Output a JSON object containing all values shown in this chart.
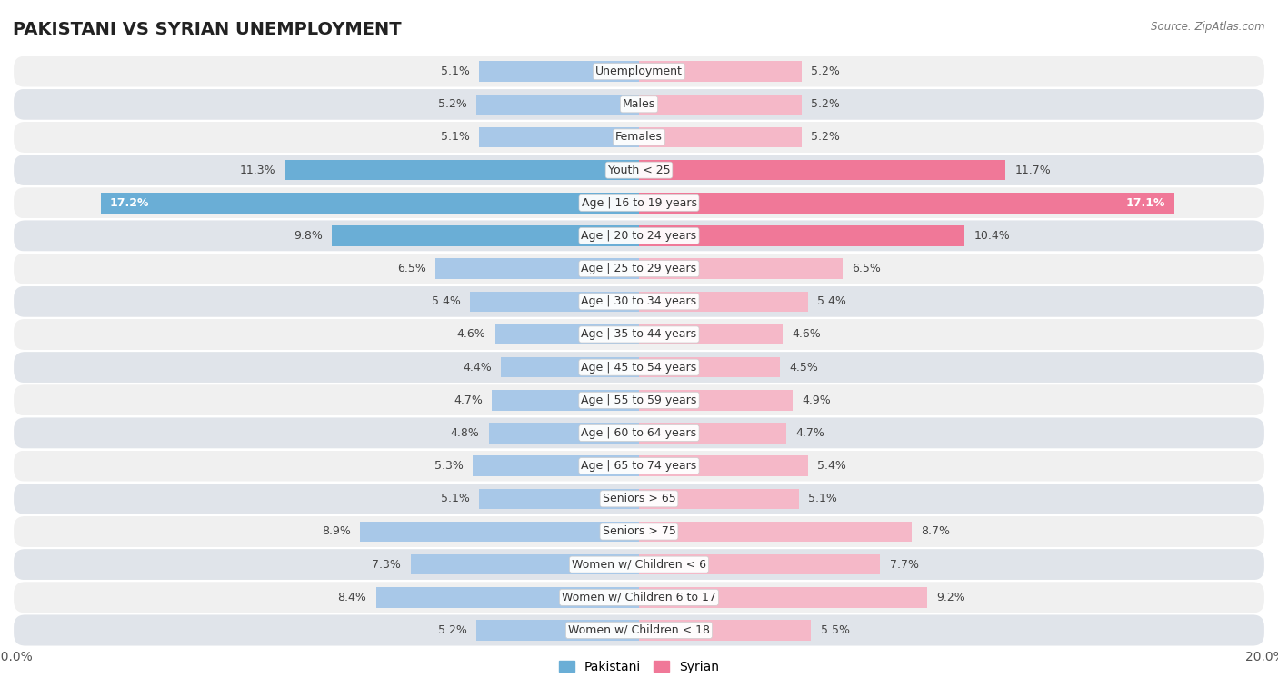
{
  "title": "PAKISTANI VS SYRIAN UNEMPLOYMENT",
  "source": "Source: ZipAtlas.com",
  "categories": [
    "Unemployment",
    "Males",
    "Females",
    "Youth < 25",
    "Age | 16 to 19 years",
    "Age | 20 to 24 years",
    "Age | 25 to 29 years",
    "Age | 30 to 34 years",
    "Age | 35 to 44 years",
    "Age | 45 to 54 years",
    "Age | 55 to 59 years",
    "Age | 60 to 64 years",
    "Age | 65 to 74 years",
    "Seniors > 65",
    "Seniors > 75",
    "Women w/ Children < 6",
    "Women w/ Children 6 to 17",
    "Women w/ Children < 18"
  ],
  "pakistani": [
    5.1,
    5.2,
    5.1,
    11.3,
    17.2,
    9.8,
    6.5,
    5.4,
    4.6,
    4.4,
    4.7,
    4.8,
    5.3,
    5.1,
    8.9,
    7.3,
    8.4,
    5.2
  ],
  "syrian": [
    5.2,
    5.2,
    5.2,
    11.7,
    17.1,
    10.4,
    6.5,
    5.4,
    4.6,
    4.5,
    4.9,
    4.7,
    5.4,
    5.1,
    8.7,
    7.7,
    9.2,
    5.5
  ],
  "pakistani_color_normal": "#a8c8e8",
  "pakistani_color_highlight": "#6aaed6",
  "syrian_color_normal": "#f5b8c8",
  "syrian_color_highlight": "#f07898",
  "row_bg_even": "#f0f0f0",
  "row_bg_odd": "#e0e4ea",
  "max_value": 20.0,
  "bar_height": 0.62,
  "label_fontsize": 9.0,
  "cat_fontsize": 9.0,
  "title_fontsize": 14,
  "legend_fontsize": 10,
  "highlight_threshold": 9.5,
  "value_label_inside_threshold": 13.0
}
